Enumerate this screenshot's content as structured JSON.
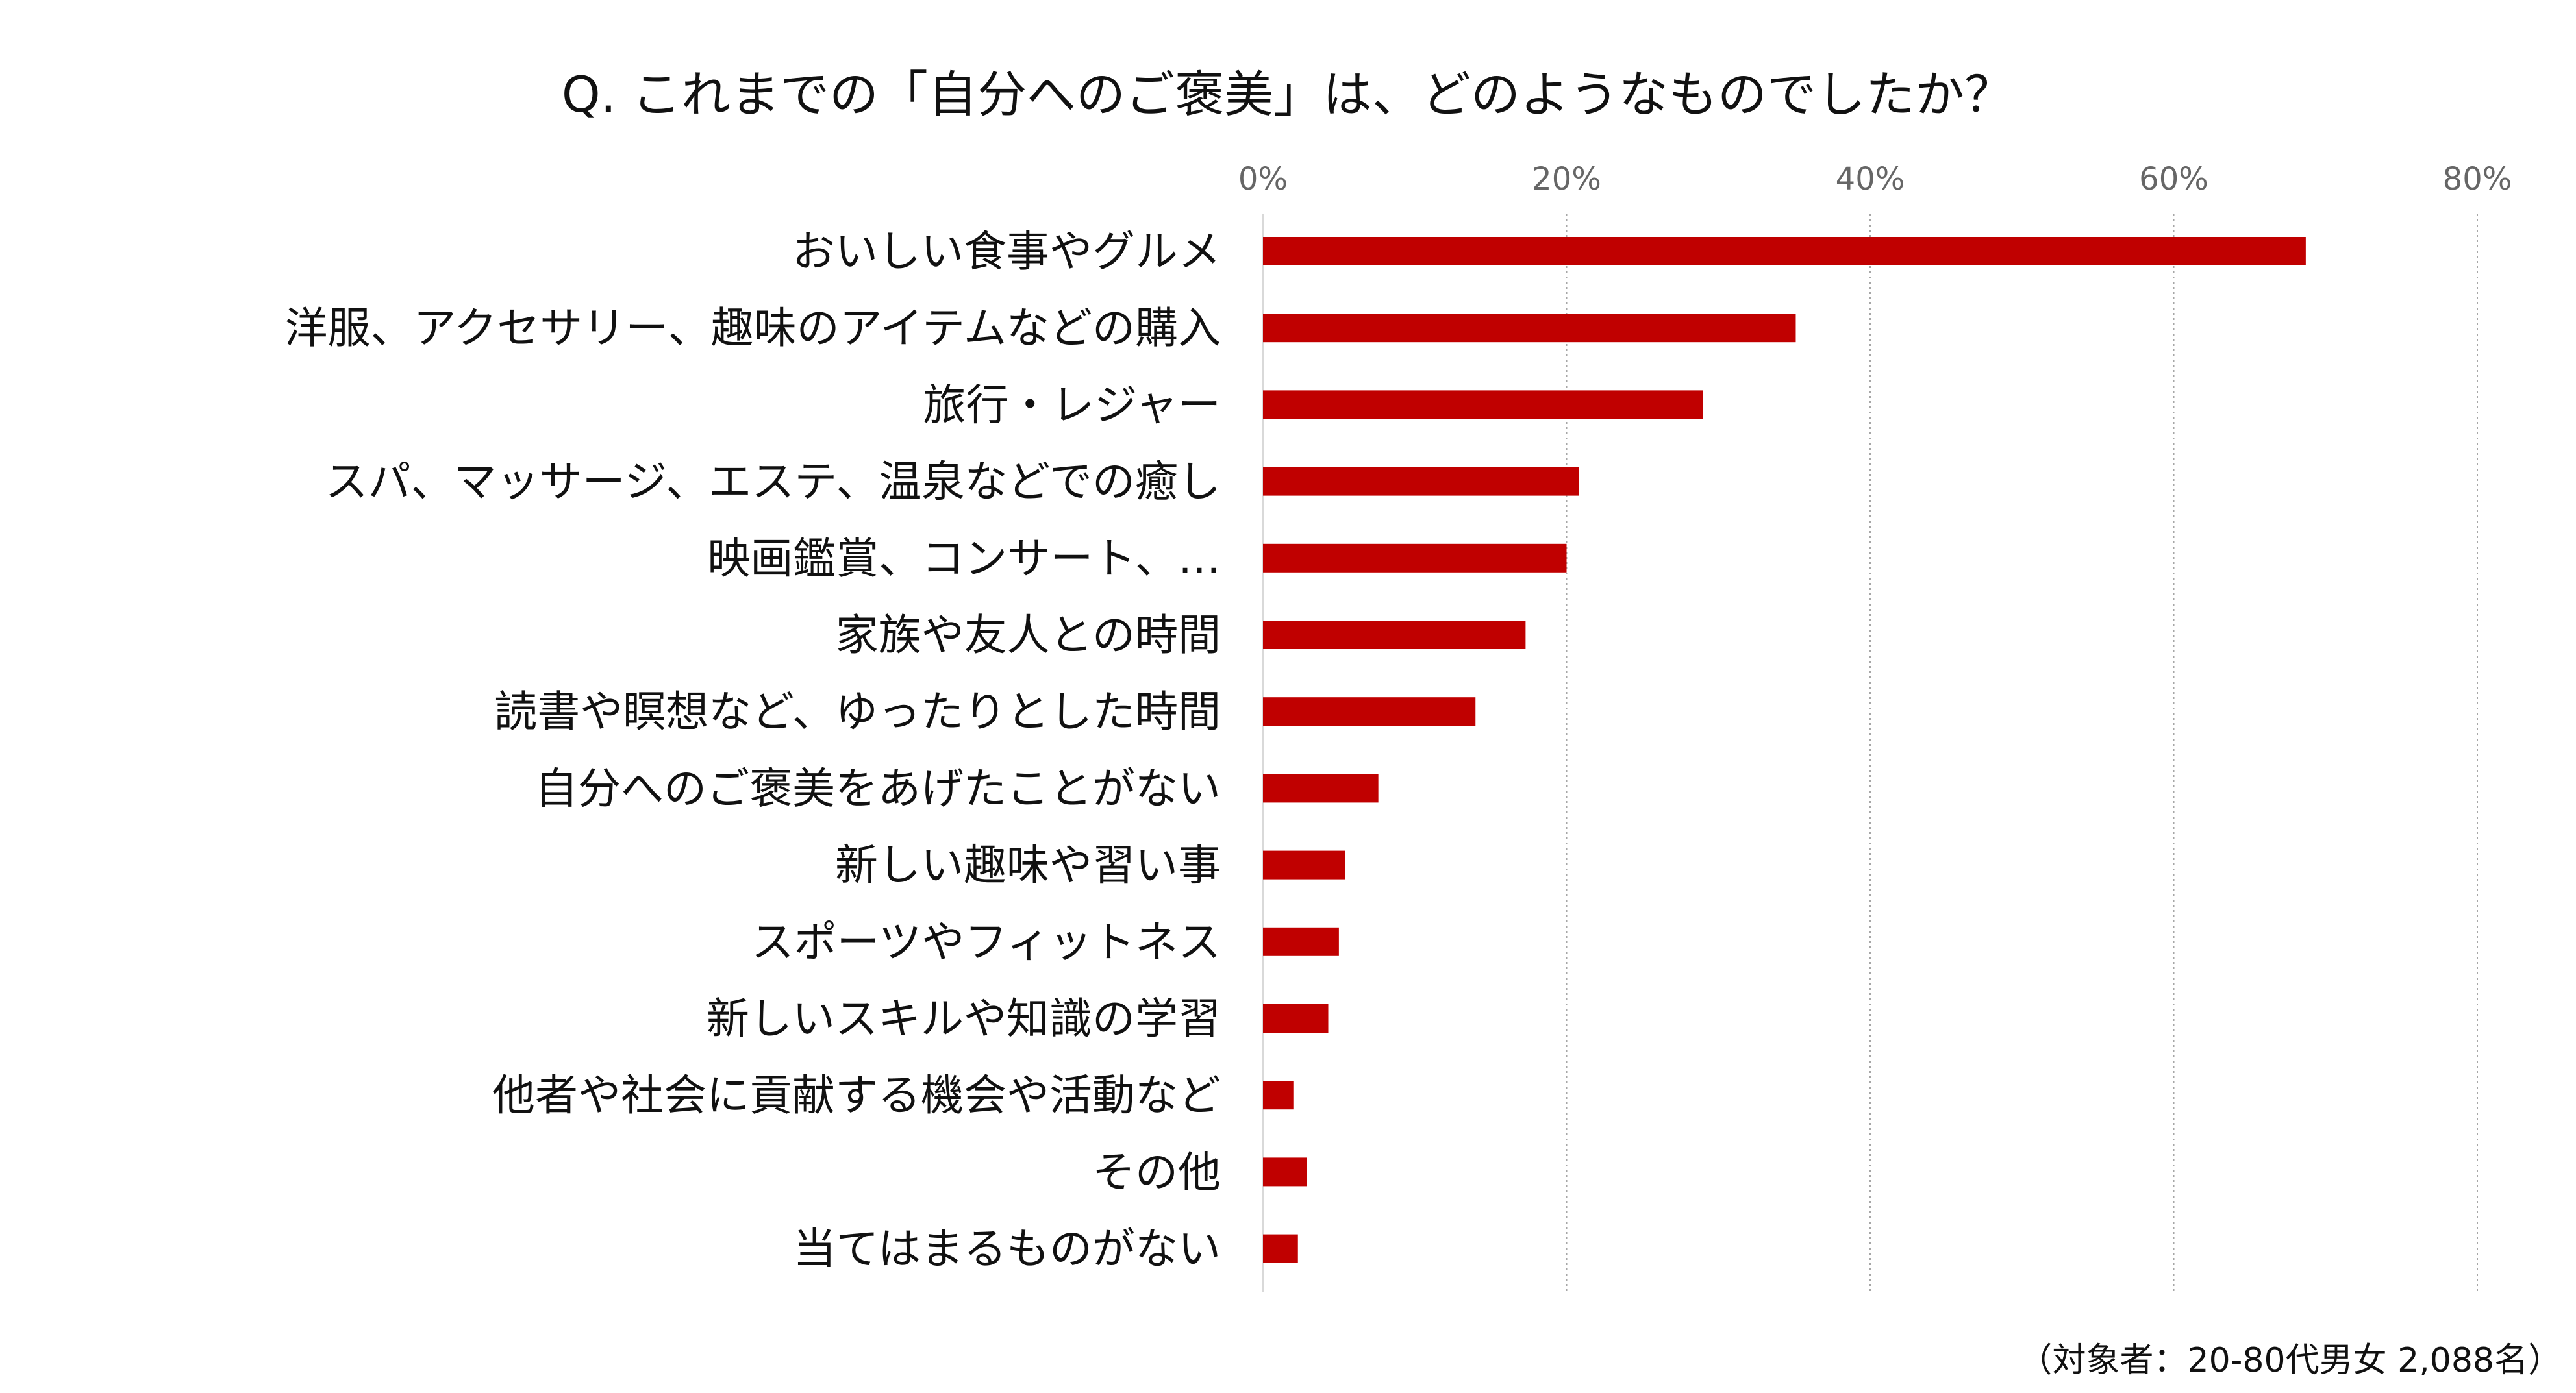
{
  "chart_data": {
    "type": "bar",
    "orientation": "horizontal",
    "title": "Q. これまでの「自分へのご褒美」は、どのようなものでしたか？",
    "note": "（対象者：20-80代男女 2,088名）",
    "categories": [
      "おいしい食事やグルメ",
      "洋服、アクセサリー、趣味のアイテムなどの購入",
      "旅行・レジャー",
      "スパ、マッサージ、エステ、温泉などでの癒し",
      "映画鑑賞、コンサート、…",
      "家族や友人との時間",
      "読書や瞑想など、ゆったりとした時間",
      "自分へのご褒美をあげたことがない",
      "新しい趣味や習い事",
      "スポーツやフィットネス",
      "新しいスキルや知識の学習",
      "他者や社会に貢献する機会や活動など",
      "その他",
      "当てはまるものがない"
    ],
    "values": [
      68.7,
      35.1,
      29.0,
      20.8,
      20.0,
      17.3,
      14.0,
      7.6,
      5.4,
      5.0,
      4.3,
      2.0,
      2.9,
      2.3
    ],
    "value_unit": "%",
    "xlim": [
      0,
      80
    ],
    "xticks": [
      0,
      20,
      40,
      60,
      80
    ],
    "xtick_labels": [
      "0%",
      "20%",
      "40%",
      "60%",
      "80%"
    ],
    "tick_position": "top",
    "grid": "vertical dotted",
    "legend": "none",
    "bar_color": "#c00000",
    "grid_color": "#a6a6a6",
    "axis_color": "#d9d9d9"
  }
}
